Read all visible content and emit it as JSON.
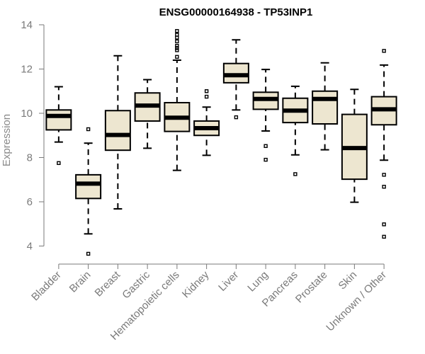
{
  "chart_data": {
    "type": "boxplot",
    "title": "ENSG00000164938 - TP53INP1",
    "xlabel": "",
    "ylabel": "Expression",
    "ylim": [
      3.6,
      14
    ],
    "yticks": [
      4,
      6,
      8,
      10,
      12,
      14
    ],
    "box_fill": "#ede6d0",
    "groups": [
      {
        "name": "Bladder",
        "whislo": 8.7,
        "q1": 9.25,
        "median": 9.88,
        "q3": 10.15,
        "whishi": 11.2,
        "outliers": [
          7.75
        ]
      },
      {
        "name": "Brain",
        "whislo": 4.55,
        "q1": 6.15,
        "median": 6.82,
        "q3": 7.22,
        "whishi": 8.65,
        "outliers": [
          3.65,
          9.28
        ]
      },
      {
        "name": "Breast",
        "whislo": 5.68,
        "q1": 8.33,
        "median": 9.02,
        "q3": 10.12,
        "whishi": 12.6,
        "outliers": []
      },
      {
        "name": "Gastric",
        "whislo": 8.42,
        "q1": 9.65,
        "median": 10.35,
        "q3": 10.92,
        "whishi": 11.52,
        "outliers": []
      },
      {
        "name": "Hematopoietic cells",
        "whislo": 7.42,
        "q1": 9.18,
        "median": 9.8,
        "q3": 10.48,
        "whishi": 12.4,
        "outliers": [
          12.55,
          12.85,
          12.95,
          13.05,
          13.25,
          13.42,
          13.55,
          13.72
        ]
      },
      {
        "name": "Kidney",
        "whislo": 8.1,
        "q1": 9.0,
        "median": 9.33,
        "q3": 9.65,
        "whishi": 10.28,
        "outliers": [
          10.75,
          11.0
        ]
      },
      {
        "name": "Liver",
        "whislo": 10.15,
        "q1": 11.38,
        "median": 11.72,
        "q3": 12.25,
        "whishi": 13.32,
        "outliers": [
          9.82
        ]
      },
      {
        "name": "Lung",
        "whislo": 9.2,
        "q1": 10.18,
        "median": 10.65,
        "q3": 10.95,
        "whishi": 11.98,
        "outliers": [
          8.52,
          7.9
        ]
      },
      {
        "name": "Pancreas",
        "whislo": 8.12,
        "q1": 9.58,
        "median": 10.12,
        "q3": 10.68,
        "whishi": 11.22,
        "outliers": [
          7.25
        ]
      },
      {
        "name": "Prostate",
        "whislo": 8.35,
        "q1": 9.52,
        "median": 10.65,
        "q3": 11.0,
        "whishi": 12.28,
        "outliers": []
      },
      {
        "name": "Skin",
        "whislo": 5.98,
        "q1": 7.02,
        "median": 8.43,
        "q3": 9.95,
        "whishi": 11.08,
        "outliers": []
      },
      {
        "name": "Unknown / Other",
        "whislo": 7.88,
        "q1": 9.48,
        "median": 10.18,
        "q3": 10.75,
        "whishi": 12.18,
        "outliers": [
          12.82,
          7.22,
          6.68,
          4.98,
          4.42
        ]
      }
    ]
  }
}
